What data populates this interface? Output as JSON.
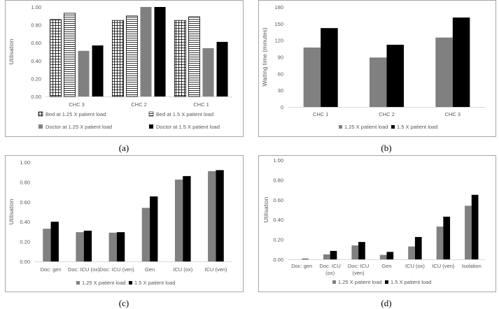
{
  "captions": {
    "a": "(a)",
    "b": "(b)",
    "c": "(c)",
    "d": "(d)"
  },
  "colors": {
    "gray": "#808080",
    "black": "#000000",
    "hatch_stroke": "#000000",
    "frame": "#a6a6a6",
    "text": "#595959"
  },
  "chart_data": [
    {
      "id": "a",
      "type": "bar",
      "title": "",
      "ylabel": "Utilisation",
      "xlabel": "",
      "ylim": [
        0,
        1.0
      ],
      "yticks": [
        0,
        0.2,
        0.4,
        0.6,
        0.8,
        1.0
      ],
      "ytick_labels": [
        "0.00",
        "0.20",
        "0.40",
        "0.60",
        "0.80",
        "1.00"
      ],
      "categories": [
        "CHC 3",
        "CHC 2",
        "CHC 1"
      ],
      "series": [
        {
          "name": "Bed at 1.25 X patient load",
          "style": "grid",
          "values": [
            0.86,
            0.85,
            0.85
          ]
        },
        {
          "name": "Bed at 1.5 X patient load",
          "style": "hlines",
          "values": [
            0.93,
            0.9,
            0.89
          ]
        },
        {
          "name": "Doctor at 1.25 X patient load",
          "style": "gray",
          "values": [
            0.51,
            1.0,
            0.54
          ]
        },
        {
          "name": "Doctor at 1.5 X patient load",
          "style": "black",
          "values": [
            0.57,
            1.0,
            0.61
          ]
        }
      ],
      "legend": "bottom"
    },
    {
      "id": "b",
      "type": "bar",
      "title": "",
      "ylabel": "Waiting time (minutes)",
      "xlabel": "",
      "ylim": [
        0,
        180
      ],
      "yticks": [
        0,
        30,
        60,
        90,
        120,
        150,
        180
      ],
      "ytick_labels": [
        "0",
        "30",
        "60",
        "90",
        "120",
        "150",
        "180"
      ],
      "categories": [
        "CHC 1",
        "CHC 2",
        "CHC 3"
      ],
      "series": [
        {
          "name": "1.25 X patient load",
          "style": "gray",
          "values": [
            107,
            89,
            125
          ]
        },
        {
          "name": "1.5 X patient load",
          "style": "black",
          "values": [
            142,
            112,
            161
          ]
        }
      ],
      "legend": "bottom"
    },
    {
      "id": "c",
      "type": "bar",
      "title": "",
      "ylabel": "Utilisation",
      "xlabel": "",
      "ylim": [
        0,
        1.0
      ],
      "yticks": [
        0,
        0.2,
        0.4,
        0.6,
        0.8,
        1.0
      ],
      "ytick_labels": [
        "0.00",
        "0.20",
        "0.40",
        "0.60",
        "0.80",
        "1.00"
      ],
      "categories": [
        "Doc: gen",
        "Doc: ICU (ox)",
        "Doc: ICU (ven)",
        "Gen",
        "ICU (ox)",
        "ICU (ven)"
      ],
      "series": [
        {
          "name": "1.25 X patient load",
          "style": "gray",
          "values": [
            0.33,
            0.295,
            0.29,
            0.54,
            0.825,
            0.91
          ]
        },
        {
          "name": "1.5 X patient load",
          "style": "black",
          "values": [
            0.4,
            0.31,
            0.295,
            0.655,
            0.86,
            0.92
          ]
        }
      ],
      "legend": "bottom"
    },
    {
      "id": "d",
      "type": "bar",
      "title": "",
      "ylabel": "Utilisation",
      "xlabel": "",
      "ylim": [
        0,
        1.0
      ],
      "yticks": [
        0,
        0.2,
        0.4,
        0.6,
        0.8,
        1.0
      ],
      "ytick_labels": [
        "0.00",
        "0.20",
        "0.40",
        "0.60",
        "0.80",
        "1.00"
      ],
      "categories": [
        [
          "Doc: gen"
        ],
        [
          "Doc: ICU",
          "(ox)"
        ],
        [
          "Doc: ICU",
          "(ven)"
        ],
        [
          "Gen"
        ],
        [
          "ICU (ox)"
        ],
        [
          "ICU (ven)"
        ],
        [
          "Isolation"
        ]
      ],
      "series": [
        {
          "name": "1.25 X patient load",
          "style": "gray",
          "values": [
            0.0,
            0.05,
            0.14,
            0.045,
            0.13,
            0.33,
            0.54
          ]
        },
        {
          "name": "1.5 X patient load",
          "style": "black",
          "values": [
            0.005,
            0.085,
            0.175,
            0.075,
            0.225,
            0.43,
            0.65
          ]
        }
      ],
      "legend": "bottom"
    }
  ]
}
